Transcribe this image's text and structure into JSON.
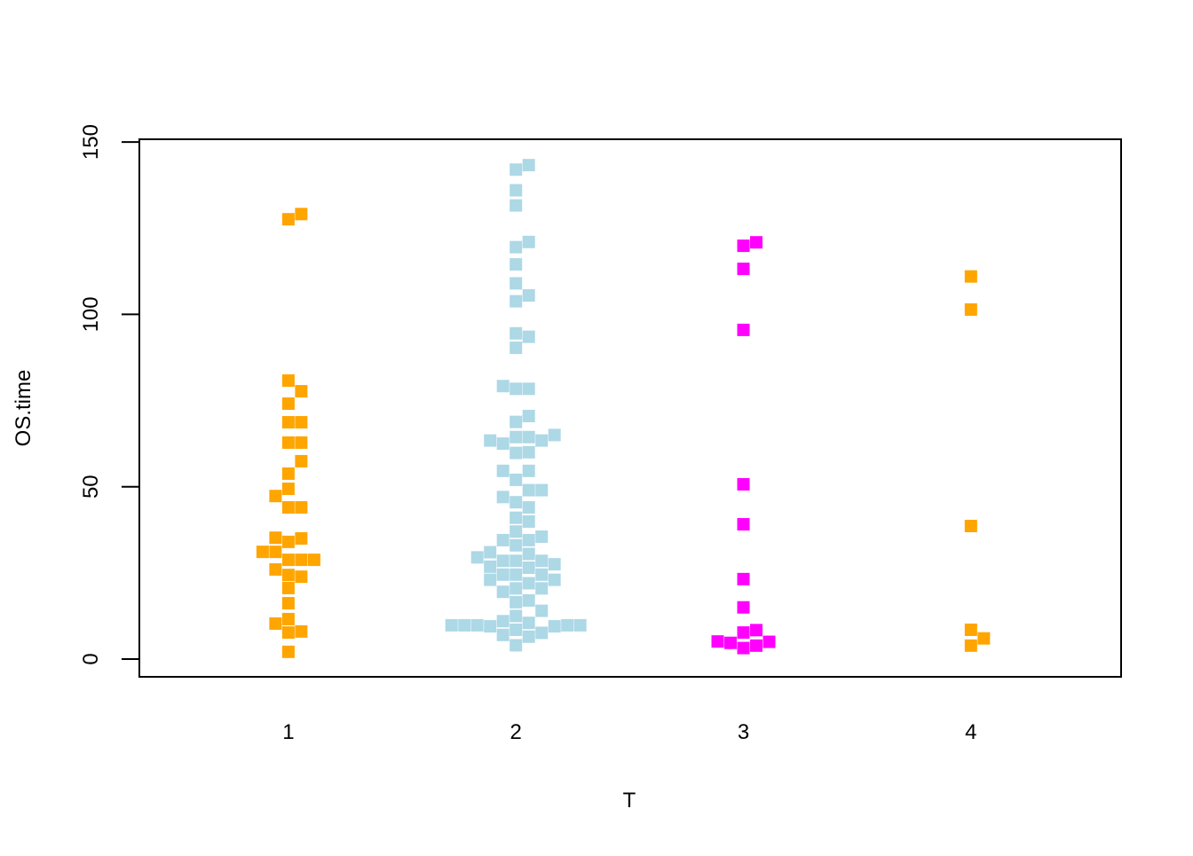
{
  "chart_data": {
    "type": "beeswarm",
    "xlabel": "T",
    "ylabel": "OS.time",
    "categories": [
      "1",
      "2",
      "3",
      "4"
    ],
    "colors": [
      "#ffa500",
      "#add8e6",
      "#ff00ff",
      "#ffa500"
    ],
    "values": [
      [
        129.1,
        127.6,
        80.8,
        77.7,
        74.1,
        68.7,
        68.7,
        62.8,
        62.8,
        57.4,
        53.8,
        49.4,
        47.3,
        44.0,
        44.0,
        35.2,
        35.0,
        34.0,
        31.1,
        31.1,
        28.8,
        28.8,
        28.8,
        26.0,
        24.4,
        23.9,
        20.6,
        16.2,
        11.6,
        10.3,
        8.0,
        7.7,
        2.1
      ],
      [
        143.3,
        142.0,
        136.0,
        131.6,
        121.0,
        119.5,
        114.5,
        109.0,
        105.5,
        103.8,
        94.5,
        93.5,
        90.3,
        79.2,
        78.4,
        78.4,
        70.5,
        68.8,
        65.0,
        64.4,
        64.4,
        63.4,
        63.4,
        62.5,
        60.0,
        59.8,
        54.6,
        54.6,
        52.0,
        49.0,
        49.0,
        47.0,
        45.5,
        44.0,
        41.0,
        39.9,
        37.0,
        35.5,
        34.5,
        34.5,
        33.0,
        31.0,
        30.5,
        29.5,
        28.5,
        28.5,
        28.5,
        27.5,
        26.8,
        26.5,
        24.5,
        24.5,
        24.5,
        23.0,
        23.0,
        22.0,
        20.5,
        20.5,
        19.5,
        17.0,
        16.5,
        14.0,
        12.5,
        11.0,
        10.5,
        9.8,
        9.8,
        9.8,
        9.8,
        9.8,
        9.5,
        9.5,
        8.5,
        7.6,
        7.0,
        6.5,
        4.0
      ],
      [
        120.9,
        119.9,
        113.2,
        95.5,
        50.7,
        39.1,
        23.2,
        15.0,
        8.4,
        7.7,
        5.1,
        5.0,
        4.7,
        3.9,
        3.2
      ],
      [
        111.0,
        101.4,
        38.6,
        8.5,
        6.0,
        3.9
      ]
    ],
    "xlim": [
      0.345,
      4.66
    ],
    "ylim": [
      -5.15,
      150.8
    ],
    "yticks": [
      0,
      50,
      100,
      150
    ]
  }
}
